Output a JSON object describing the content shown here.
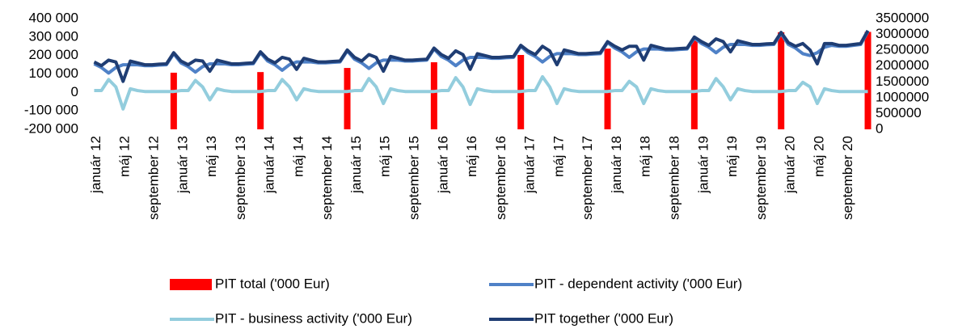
{
  "chart_data": {
    "type": "combo",
    "categories": [
      "január 12",
      null,
      null,
      null,
      "máj 12",
      null,
      null,
      null,
      "september 12",
      null,
      null,
      null,
      "január 13",
      null,
      null,
      null,
      "máj 13",
      null,
      null,
      null,
      "september 13",
      null,
      null,
      null,
      "január 14",
      null,
      null,
      null,
      "máj 14",
      null,
      null,
      null,
      "september 14",
      null,
      null,
      null,
      "január 15",
      null,
      null,
      null,
      "máj 15",
      null,
      null,
      null,
      "september 15",
      null,
      null,
      null,
      "január 16",
      null,
      null,
      null,
      "máj 16",
      null,
      null,
      null,
      "september 16",
      null,
      null,
      null,
      "január 17",
      null,
      null,
      null,
      "máj 17",
      null,
      null,
      null,
      "september 17",
      null,
      null,
      null,
      "január 18",
      null,
      null,
      null,
      "máj 18",
      null,
      null,
      null,
      "september 18",
      null,
      null,
      null,
      "január 19",
      null,
      null,
      null,
      "máj 19",
      null,
      null,
      null,
      "september 19",
      null,
      null,
      null,
      "január 20",
      null,
      null,
      null,
      "máj 20",
      null,
      null,
      null,
      "september 20",
      null,
      null,
      null
    ],
    "series": [
      {
        "name": "PIT total ('000 Eur)",
        "type": "bar",
        "axis": "y2",
        "color": "#ff0000",
        "values": [
          null,
          null,
          null,
          null,
          null,
          null,
          null,
          null,
          null,
          null,
          null,
          1790000,
          null,
          null,
          null,
          null,
          null,
          null,
          null,
          null,
          null,
          null,
          null,
          1810000,
          null,
          null,
          null,
          null,
          null,
          null,
          null,
          null,
          null,
          null,
          null,
          1940000,
          null,
          null,
          null,
          null,
          null,
          null,
          null,
          null,
          null,
          null,
          null,
          2120000,
          null,
          null,
          null,
          null,
          null,
          null,
          null,
          null,
          null,
          null,
          null,
          2350000,
          null,
          null,
          null,
          null,
          null,
          null,
          null,
          null,
          null,
          null,
          null,
          2550000,
          null,
          null,
          null,
          null,
          null,
          null,
          null,
          null,
          null,
          null,
          null,
          2840000,
          null,
          null,
          null,
          null,
          null,
          null,
          null,
          null,
          null,
          null,
          null,
          3070000,
          null,
          null,
          null,
          null,
          null,
          null,
          null,
          null,
          null,
          null,
          null,
          3080000
        ]
      },
      {
        "name": "PIT - dependent activity ('000 Eur)",
        "type": "line",
        "color": "#4f81c7",
        "values": [
          155000,
          135000,
          105000,
          135000,
          150000,
          150000,
          150000,
          145000,
          145000,
          148000,
          150000,
          210000,
          160000,
          140000,
          110000,
          140000,
          155000,
          155000,
          155000,
          150000,
          150000,
          153000,
          155000,
          215000,
          170000,
          150000,
          120000,
          150000,
          165000,
          165000,
          165000,
          160000,
          160000,
          163000,
          165000,
          225000,
          180000,
          160000,
          130000,
          160000,
          175000,
          175000,
          175000,
          170000,
          170000,
          173000,
          175000,
          235000,
          195000,
          175000,
          145000,
          175000,
          190000,
          190000,
          190000,
          185000,
          185000,
          188000,
          190000,
          250000,
          215000,
          195000,
          165000,
          195000,
          210000,
          210000,
          210000,
          205000,
          205000,
          208000,
          210000,
          270000,
          240000,
          220000,
          190000,
          220000,
          235000,
          235000,
          235000,
          230000,
          230000,
          233000,
          235000,
          295000,
          265000,
          245000,
          215000,
          245000,
          260000,
          260000,
          260000,
          255000,
          255000,
          258000,
          260000,
          320000,
          260000,
          240000,
          210000,
          200000,
          215000,
          245000,
          255000,
          250000,
          250000,
          255000,
          260000,
          330000
        ]
      },
      {
        "name": "PIT - business activity ('000 Eur)",
        "type": "line",
        "color": "#93cddd",
        "values": [
          10000,
          10000,
          70000,
          30000,
          -90000,
          20000,
          10000,
          5000,
          5000,
          5000,
          5000,
          5000,
          10000,
          10000,
          65000,
          30000,
          -40000,
          20000,
          10000,
          5000,
          5000,
          5000,
          5000,
          5000,
          10000,
          10000,
          70000,
          30000,
          -40000,
          20000,
          10000,
          5000,
          5000,
          5000,
          5000,
          5000,
          10000,
          10000,
          75000,
          30000,
          -60000,
          20000,
          10000,
          5000,
          5000,
          5000,
          5000,
          5000,
          10000,
          10000,
          80000,
          30000,
          -65000,
          20000,
          10000,
          5000,
          5000,
          5000,
          5000,
          5000,
          10000,
          10000,
          85000,
          30000,
          -60000,
          20000,
          10000,
          5000,
          5000,
          5000,
          5000,
          5000,
          10000,
          10000,
          60000,
          30000,
          -60000,
          20000,
          10000,
          5000,
          5000,
          5000,
          5000,
          5000,
          10000,
          10000,
          75000,
          30000,
          -40000,
          20000,
          10000,
          5000,
          5000,
          5000,
          5000,
          5000,
          10000,
          10000,
          55000,
          30000,
          -60000,
          20000,
          10000,
          5000,
          5000,
          5000,
          5000,
          5000
        ]
      },
      {
        "name": "PIT together ('000 Eur)",
        "type": "line",
        "color": "#1f3d73",
        "values": [
          165000,
          145000,
          175000,
          165000,
          60000,
          170000,
          160000,
          150000,
          150000,
          153000,
          155000,
          215000,
          170000,
          150000,
          175000,
          170000,
          115000,
          175000,
          165000,
          155000,
          155000,
          158000,
          160000,
          220000,
          180000,
          160000,
          190000,
          180000,
          125000,
          185000,
          175000,
          165000,
          165000,
          168000,
          170000,
          230000,
          190000,
          170000,
          205000,
          190000,
          115000,
          195000,
          185000,
          175000,
          175000,
          178000,
          180000,
          240000,
          205000,
          185000,
          225000,
          205000,
          125000,
          210000,
          200000,
          190000,
          190000,
          193000,
          195000,
          255000,
          225000,
          205000,
          250000,
          225000,
          150000,
          230000,
          220000,
          210000,
          210000,
          213000,
          215000,
          275000,
          250000,
          230000,
          250000,
          250000,
          175000,
          255000,
          245000,
          235000,
          235000,
          238000,
          240000,
          300000,
          275000,
          255000,
          290000,
          275000,
          220000,
          280000,
          270000,
          260000,
          260000,
          263000,
          265000,
          325000,
          270000,
          250000,
          265000,
          230000,
          155000,
          265000,
          265000,
          255000,
          255000,
          260000,
          265000,
          335000
        ]
      }
    ],
    "ylim": [
      -200000,
      400000
    ],
    "yticks": [
      {
        "value": -200000,
        "label": "-200 000"
      },
      {
        "value": -100000,
        "label": "-100 000"
      },
      0,
      {
        "value": 100000,
        "label": "100 000"
      },
      {
        "value": 200000,
        "label": "200 000"
      },
      {
        "value": 300000,
        "label": "300 000"
      },
      {
        "value": 400000,
        "label": "400 000"
      }
    ],
    "y2lim": [
      0,
      3500000
    ],
    "y2ticks": [
      0,
      500000,
      1000000,
      1500000,
      2000000,
      2500000,
      3000000,
      3500000
    ],
    "grid": false,
    "legend": "bottom"
  }
}
